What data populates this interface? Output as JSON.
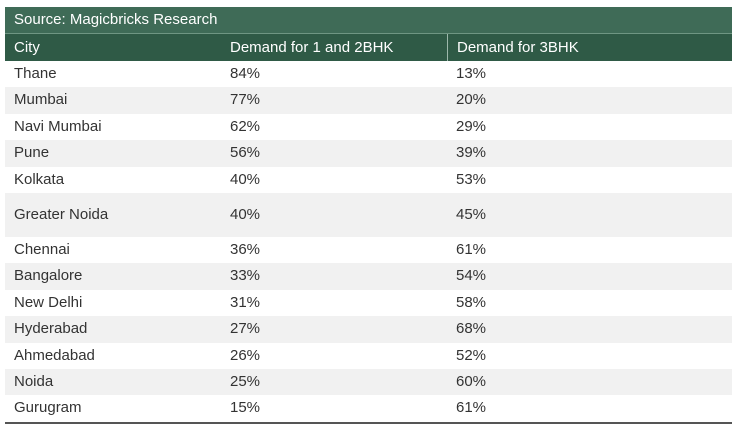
{
  "source": "Source: Magicbricks Research",
  "columns": [
    "City",
    "Demand for 1 and 2BHK",
    "Demand for 3BHK"
  ],
  "rows": [
    {
      "city": "Thane",
      "d12": "84%",
      "d3": "13%"
    },
    {
      "city": "Mumbai",
      "d12": "77%",
      "d3": "20%"
    },
    {
      "city": "Navi Mumbai",
      "d12": "62%",
      "d3": "29%"
    },
    {
      "city": "Pune",
      "d12": "56%",
      "d3": "39%"
    },
    {
      "city": "Kolkata",
      "d12": "40%",
      "d3": "53%"
    },
    {
      "city": "Greater Noida",
      "d12": "40%",
      "d3": "45%"
    },
    {
      "city": "Chennai",
      "d12": "36%",
      "d3": "61%"
    },
    {
      "city": "Bangalore",
      "d12": "33%",
      "d3": "54%"
    },
    {
      "city": "New Delhi",
      "d12": "31%",
      "d3": "58%"
    },
    {
      "city": "Hyderabad",
      "d12": "27%",
      "d3": "68%"
    },
    {
      "city": "Ahmedabad",
      "d12": "26%",
      "d3": "52%"
    },
    {
      "city": "Noida",
      "d12": "25%",
      "d3": "60%"
    },
    {
      "city": "Gurugram",
      "d12": "15%",
      "d3": "61%"
    }
  ],
  "colors": {
    "source_bar": "#3f6b57",
    "header": "#2f5a46",
    "row_shade": "#f1f1f1"
  }
}
